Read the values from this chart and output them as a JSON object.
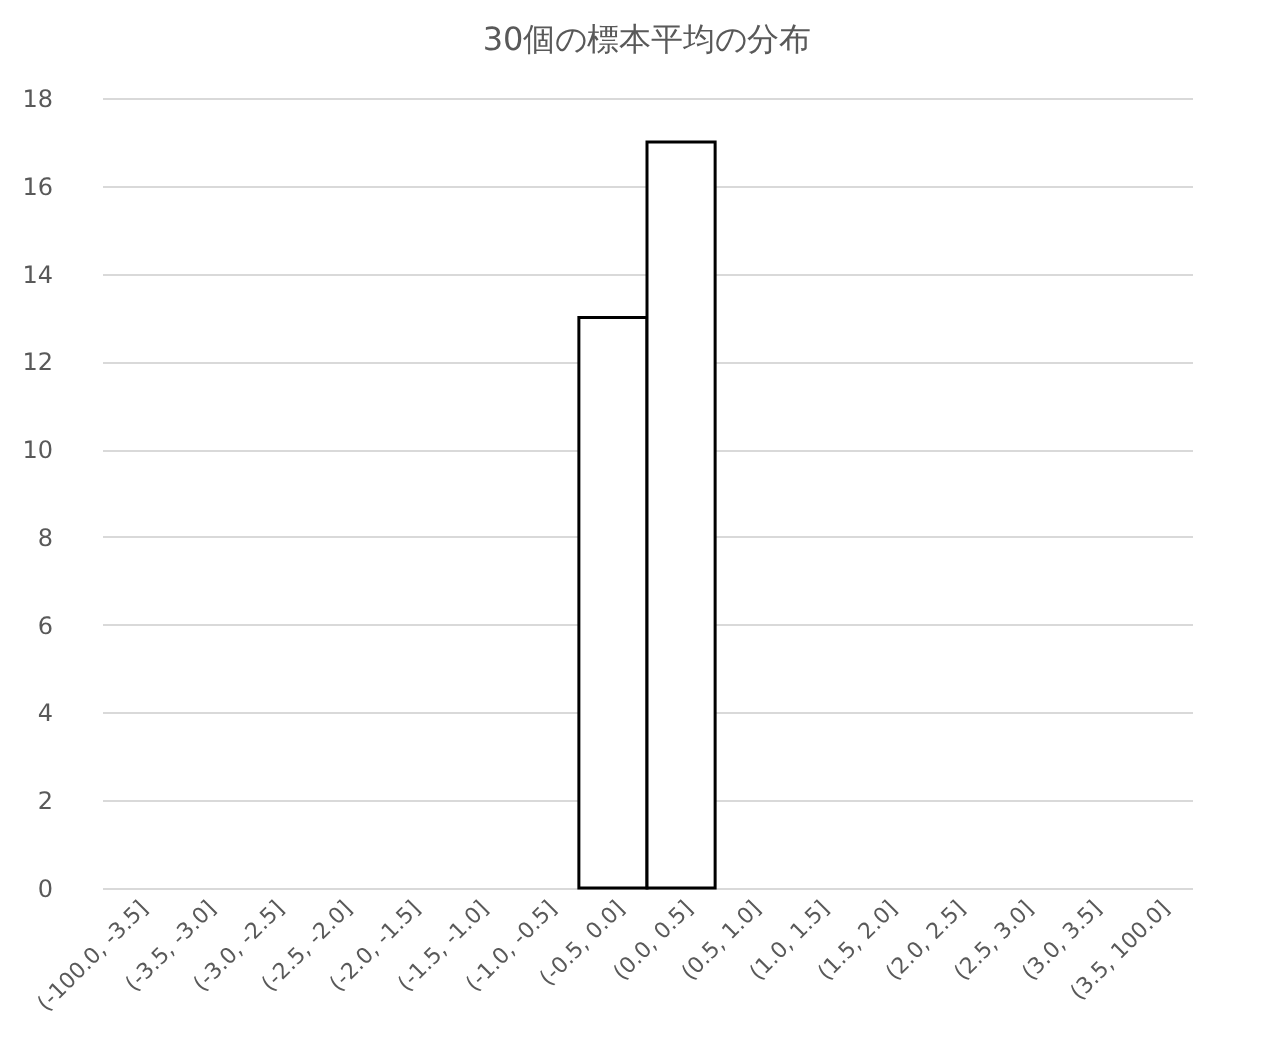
{
  "chart_data": {
    "type": "bar",
    "title": "30個の標本平均の分布",
    "categories": [
      "(-100.0, -3.5]",
      "(-3.5, -3.0]",
      "(-3.0, -2.5]",
      "(-2.5, -2.0]",
      "(-2.0, -1.5]",
      "(-1.5, -1.0]",
      "(-1.0, -0.5]",
      "(-0.5, 0.0]",
      "(0.0, 0.5]",
      "(0.5, 1.0]",
      "(1.0, 1.5]",
      "(1.5, 2.0]",
      "(2.0, 2.5]",
      "(2.5, 3.0]",
      "(3.0, 3.5]",
      "(3.5, 100.0]"
    ],
    "values": [
      0,
      0,
      0,
      0,
      0,
      0,
      0,
      13,
      17,
      0,
      0,
      0,
      0,
      0,
      0,
      0
    ],
    "color": "#ffffff",
    "ylim": [
      0,
      18
    ],
    "yticks": [
      0,
      2,
      4,
      6,
      8,
      10,
      12,
      14,
      16,
      18
    ],
    "grid": "y"
  }
}
